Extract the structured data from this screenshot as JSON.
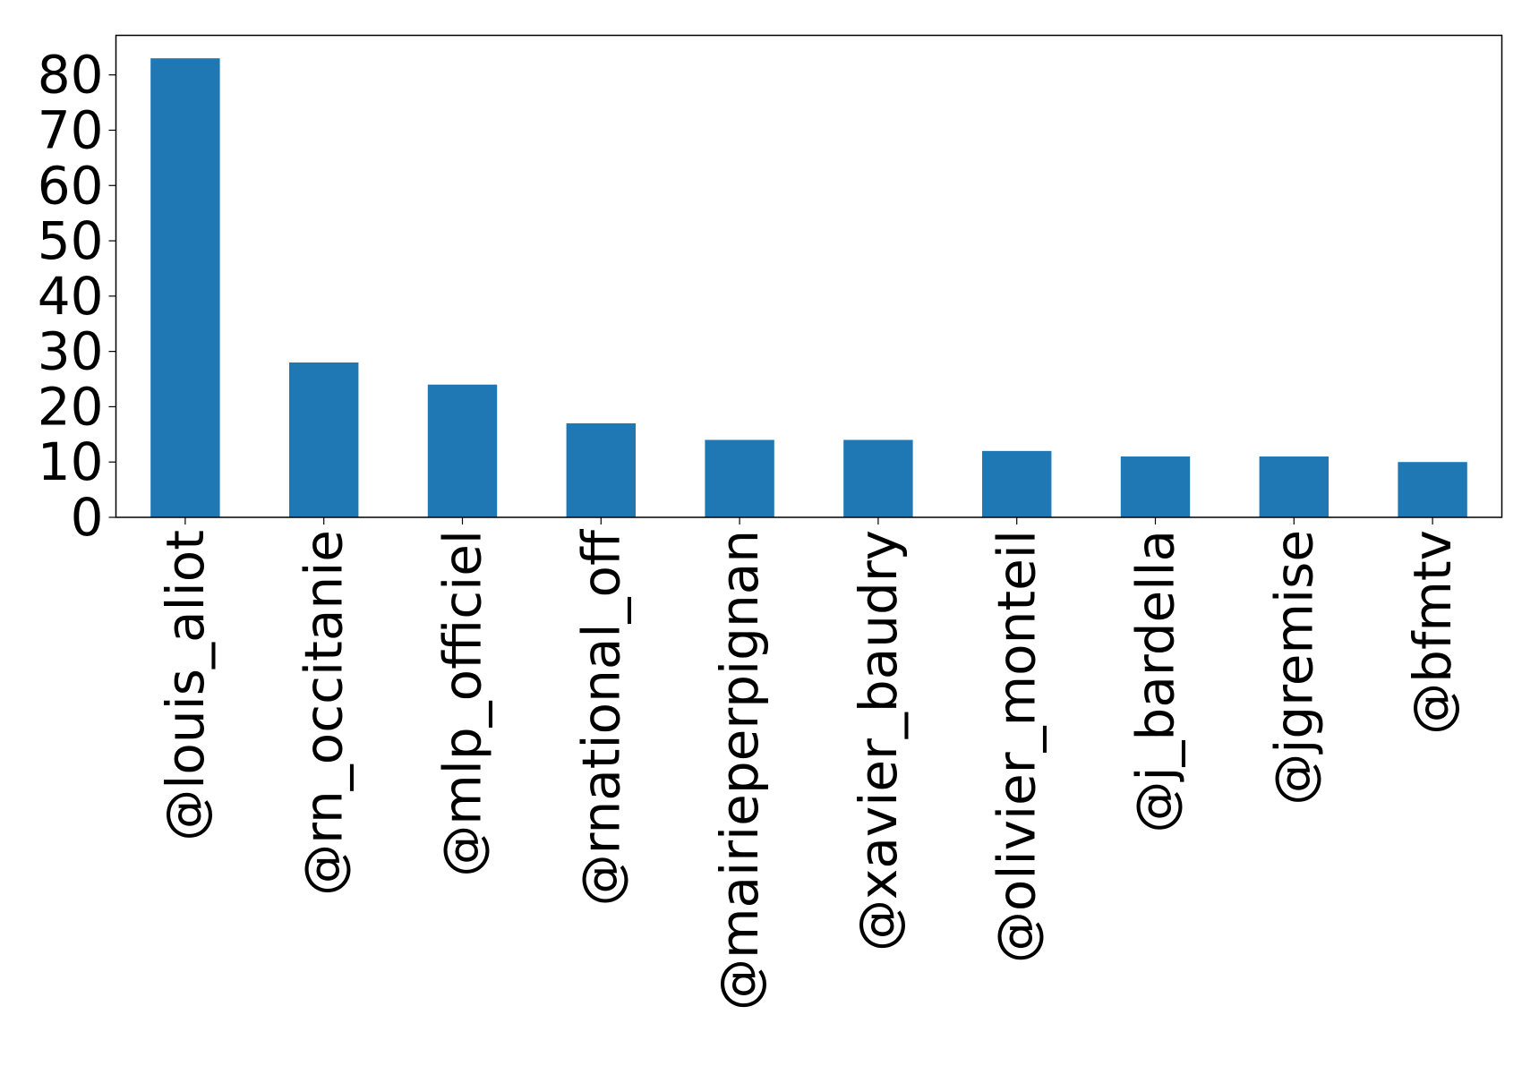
{
  "chart_data": {
    "type": "bar",
    "categories": [
      "@louis_aliot",
      "@rn_occitanie",
      "@mlp_officiel",
      "@rnational_off",
      "@mairieperpignan",
      "@xavier_baudry",
      "@olivier_monteil",
      "@j_bardella",
      "@jgremise",
      "@bfmtv"
    ],
    "values": [
      83,
      28,
      24,
      17,
      14,
      14,
      12,
      11,
      11,
      10
    ],
    "title": "",
    "xlabel": "",
    "ylabel": "",
    "ylim": [
      0,
      87.15
    ],
    "yticks": [
      "0",
      "10",
      "20",
      "30",
      "40",
      "50",
      "60",
      "70",
      "80"
    ],
    "grid": false,
    "bar_color": "#1f77b4"
  }
}
